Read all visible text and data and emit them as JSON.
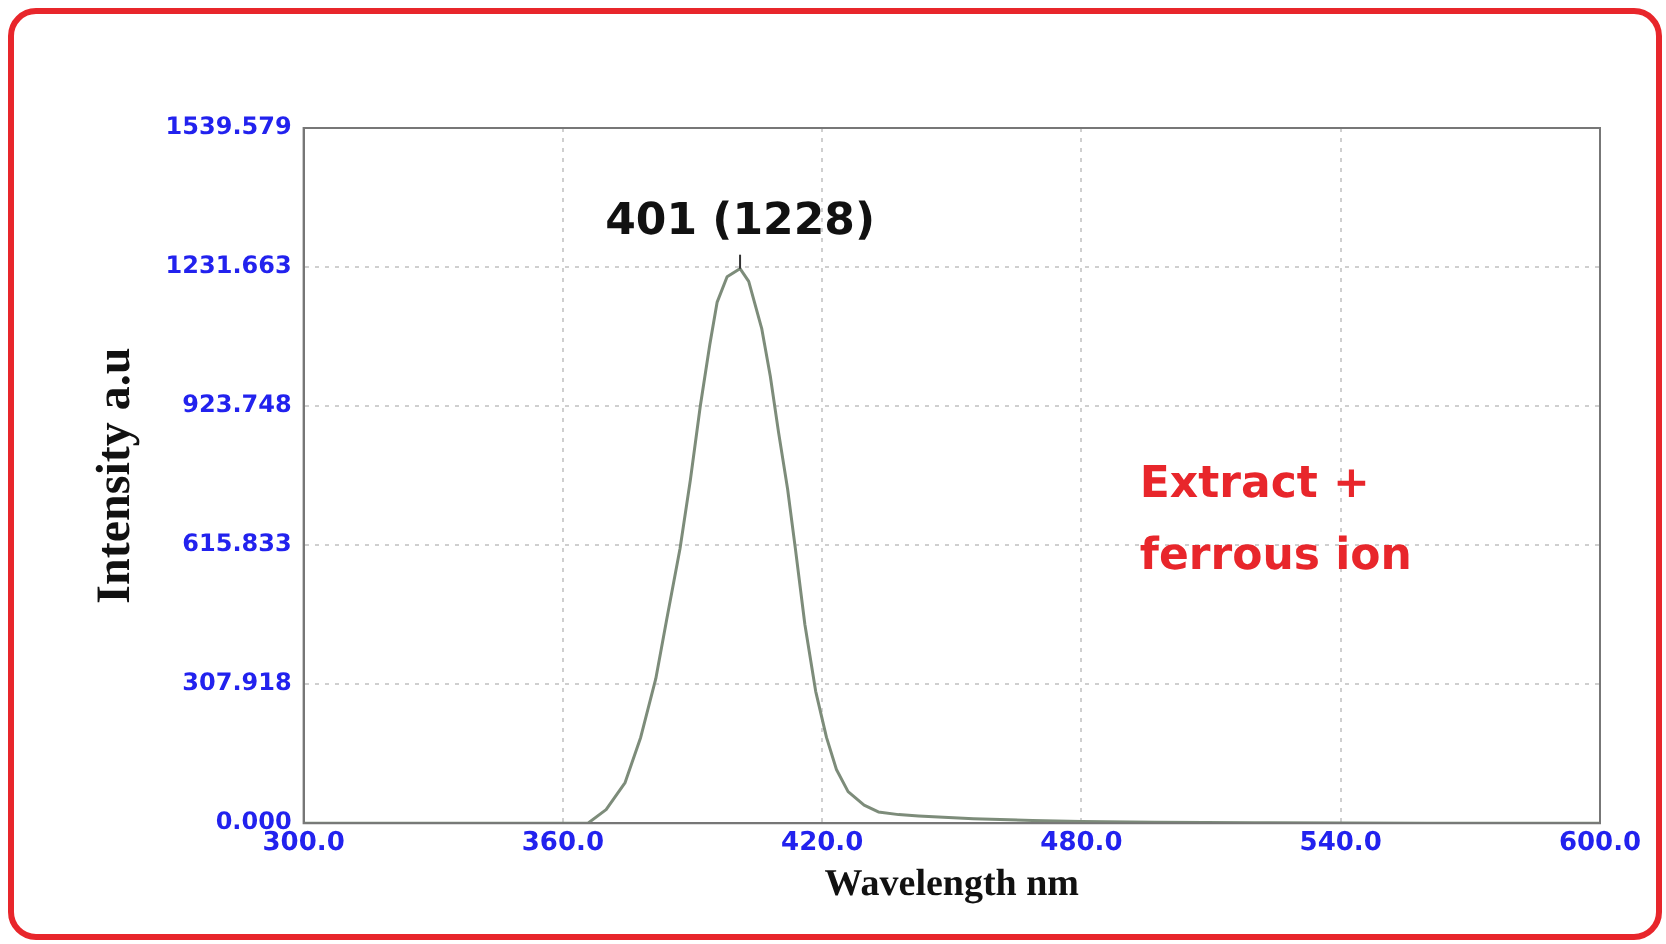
{
  "chart_data": {
    "type": "line",
    "xlabel": "Wavelength nm",
    "ylabel": "Intensity a.u",
    "x": [
      300,
      330,
      360,
      365.8,
      370,
      374.4,
      378,
      381.5,
      384,
      387.1,
      389.5,
      391.8,
      394,
      395.7,
      398,
      400.5,
      401,
      403,
      406,
      408,
      409.9,
      412,
      413.8,
      416,
      418.5,
      421,
      423.3,
      426,
      429.7,
      433,
      437.7,
      442.3,
      455,
      468.7,
      480,
      497,
      520,
      560,
      600
    ],
    "series": [
      {
        "color": "#7d8c7a",
        "values": [
          0,
          0,
          0,
          0,
          30,
          90,
          190,
          320,
          450,
          608,
          760,
          924,
          1060,
          1154,
          1210,
          1225,
          1228,
          1200,
          1096,
          990,
          866,
          740,
          608,
          440,
          292,
          190,
          119,
          70,
          40,
          25,
          19,
          16,
          10,
          6,
          4,
          2,
          1,
          0,
          0
        ]
      }
    ],
    "xlim": [
      300,
      600
    ],
    "ylim": [
      0,
      1539.579
    ],
    "xticks": [
      {
        "value": 300,
        "label": "300.0"
      },
      {
        "value": 360,
        "label": "360.0"
      },
      {
        "value": 420,
        "label": "420.0"
      },
      {
        "value": 480,
        "label": "480.0"
      },
      {
        "value": 540,
        "label": "540.0"
      },
      {
        "value": 600,
        "label": "600.0"
      }
    ],
    "yticks": [
      {
        "value": 0,
        "label": "0.000"
      },
      307.918,
      615.833,
      923.748,
      1231.663,
      1539.579
    ],
    "grid": true,
    "marker": "none",
    "line_style": "solid",
    "legend": false,
    "annotations": [
      {
        "text": "401 (1228)",
        "x": 401,
        "y": 1228
      },
      "Extract +\nferrous ion"
    ]
  }
}
